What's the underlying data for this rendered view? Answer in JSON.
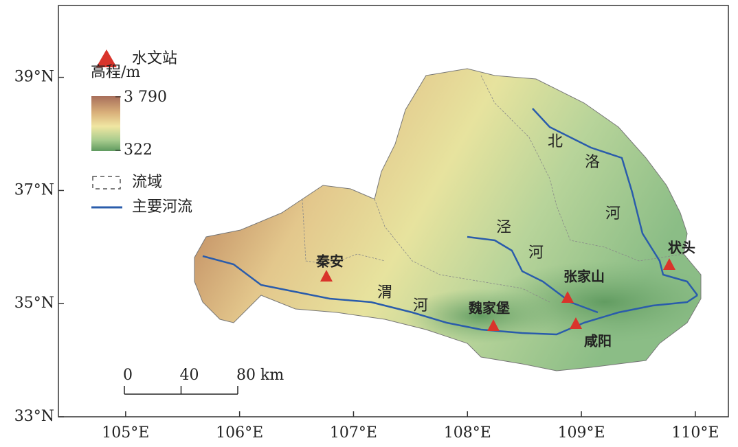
{
  "map": {
    "xlim": [
      104.41,
      110.29
    ],
    "ylim": [
      33,
      40.27
    ],
    "xticks": [
      {
        "value": 105,
        "label": "105°E"
      },
      {
        "value": 106,
        "label": "106°E"
      },
      {
        "value": 107,
        "label": "107°E"
      },
      {
        "value": 108,
        "label": "108°E"
      },
      {
        "value": 109,
        "label": "109°E"
      },
      {
        "value": 110,
        "label": "110°E"
      }
    ],
    "yticks": [
      {
        "value": 33,
        "label": "33°N"
      },
      {
        "value": 35,
        "label": "35°N"
      },
      {
        "value": 37,
        "label": "37°N"
      },
      {
        "value": 39,
        "label": "39°N"
      }
    ],
    "legend": {
      "station": "水文站",
      "elevation_title": "高程/m",
      "elevation_max": {
        "value": 3790,
        "label": "3 790"
      },
      "elevation_min": 322,
      "basin": "流域",
      "river": "主要河流"
    },
    "stations": [
      "秦安",
      "魏家堡",
      "张家山",
      "咸阳",
      "状头"
    ],
    "river_labels": [
      "北",
      "洛",
      "河",
      "泾",
      "河",
      "渭",
      "河"
    ],
    "scale_bar": [
      0,
      40,
      {
        "value": 80,
        "label": "80 km"
      }
    ]
  }
}
